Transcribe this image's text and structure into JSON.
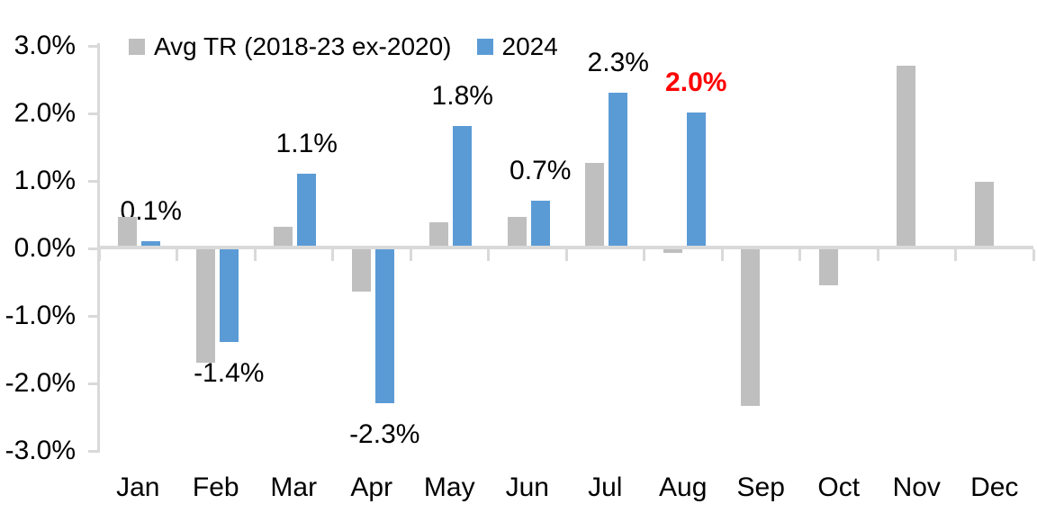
{
  "chart_data": {
    "type": "bar",
    "title": "",
    "categories": [
      "Jan",
      "Feb",
      "Mar",
      "Apr",
      "May",
      "Jun",
      "Jul",
      "Aug",
      "Sep",
      "Oct",
      "Nov",
      "Dec"
    ],
    "series": [
      {
        "name": "Avg TR (2018-23 ex-2020)",
        "color": "#BFBFBF",
        "values": [
          0.45,
          -1.7,
          0.31,
          -0.65,
          0.37,
          0.46,
          1.25,
          -0.08,
          -2.35,
          -0.56,
          2.7,
          0.97
        ]
      },
      {
        "name": "2024",
        "color": "#5B9BD5",
        "values": [
          0.1,
          -1.4,
          1.1,
          -2.3,
          1.8,
          0.7,
          2.3,
          2.0
        ],
        "data_labels": [
          {
            "text": "0.1%"
          },
          {
            "text": "-1.4%"
          },
          {
            "text": "1.1%"
          },
          {
            "text": "-2.3%"
          },
          {
            "text": "1.8%"
          },
          {
            "text": "0.7%"
          },
          {
            "text": "2.3%"
          },
          {
            "text": "2.0%",
            "color": "#FF0000",
            "bold": true
          }
        ]
      }
    ],
    "y_axis": {
      "min": -3,
      "max": 3,
      "ticks": [
        {
          "label": "3.0%",
          "value": 3
        },
        {
          "label": "2.0%",
          "value": 2
        },
        {
          "label": "1.0%",
          "value": 1
        },
        {
          "label": "0.0%",
          "value": 0
        },
        {
          "label": "-1.0%",
          "value": -1
        },
        {
          "label": "-2.0%",
          "value": -2
        },
        {
          "label": "-3.0%",
          "value": -3
        }
      ]
    },
    "legend_position": "top",
    "grid": false,
    "axis_color": "#D9D9D9",
    "label_color": "#000000",
    "highlight_color": "#FF0000",
    "background": "#FFFFFF"
  }
}
